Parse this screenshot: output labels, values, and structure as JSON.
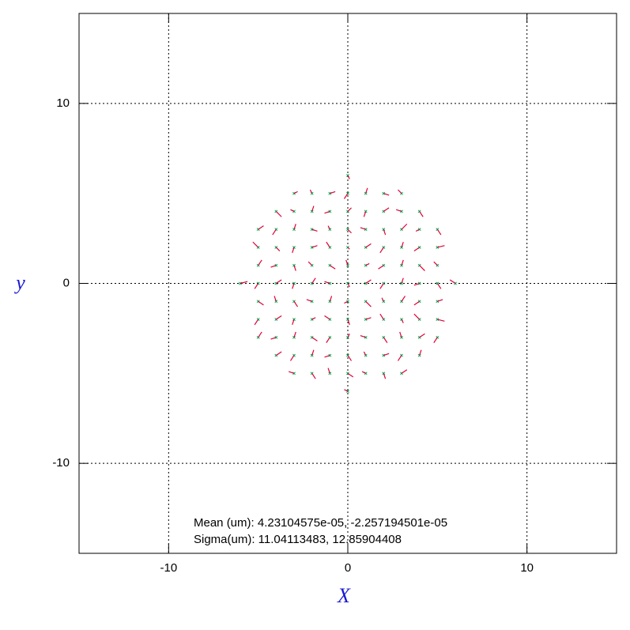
{
  "chart_data": {
    "type": "quiver",
    "xlabel": "X",
    "ylabel": "y",
    "xlim": [
      -15,
      15
    ],
    "ylim": [
      -15,
      15
    ],
    "xticks": [
      -10,
      0,
      10
    ],
    "yticks": [
      -10,
      0,
      10
    ],
    "grid": true,
    "point_color": "#00b050",
    "vector_color": "#e0003c",
    "annotations": [
      "Mean (um): 4.23104575e-05, -2.257194501e-05",
      "Sigma(um): 11.04113483, 12.85904408"
    ],
    "vectors": [
      [
        0,
        6,
        0.1,
        -0.2
      ],
      [
        -3,
        5,
        0.2,
        0.1
      ],
      [
        -2,
        5,
        -0.1,
        0.2
      ],
      [
        -1,
        5,
        0.3,
        0.1
      ],
      [
        0,
        5,
        -0.2,
        -0.3
      ],
      [
        1,
        5,
        0.1,
        0.3
      ],
      [
        2,
        5,
        0.3,
        -0.1
      ],
      [
        3,
        5,
        -0.2,
        0.2
      ],
      [
        -4,
        4,
        0.3,
        -0.3
      ],
      [
        -3,
        4,
        -0.2,
        0.1
      ],
      [
        -2,
        4,
        0.1,
        0.3
      ],
      [
        -1,
        4,
        -0.3,
        -0.1
      ],
      [
        0,
        4,
        0.2,
        0.2
      ],
      [
        1,
        4,
        -0.1,
        -0.3
      ],
      [
        2,
        4,
        0.3,
        0.2
      ],
      [
        3,
        4,
        -0.3,
        0.1
      ],
      [
        4,
        4,
        0.2,
        -0.3
      ],
      [
        -5,
        3,
        0.3,
        0.2
      ],
      [
        -4,
        3,
        -0.2,
        -0.3
      ],
      [
        -3,
        3,
        0.1,
        0.3
      ],
      [
        -2,
        3,
        0.3,
        -0.1
      ],
      [
        -1,
        3,
        -0.1,
        0.2
      ],
      [
        0,
        3,
        0.2,
        -0.2
      ],
      [
        1,
        3,
        -0.3,
        0.1
      ],
      [
        2,
        3,
        0.1,
        -0.3
      ],
      [
        3,
        3,
        0.3,
        0.3
      ],
      [
        4,
        3,
        -0.2,
        -0.1
      ],
      [
        5,
        3,
        0.2,
        -0.3
      ],
      [
        -5,
        2,
        -0.3,
        0.3
      ],
      [
        -4,
        2,
        0.2,
        -0.2
      ],
      [
        -3,
        2,
        -0.1,
        -0.3
      ],
      [
        -2,
        2,
        0.3,
        0.1
      ],
      [
        -1,
        2,
        -0.2,
        0.3
      ],
      [
        0,
        2,
        0.1,
        -0.1
      ],
      [
        1,
        2,
        0.3,
        0.2
      ],
      [
        2,
        2,
        -0.2,
        -0.3
      ],
      [
        3,
        2,
        0.1,
        0.3
      ],
      [
        4,
        2,
        -0.3,
        -0.2
      ],
      [
        5,
        2,
        0.4,
        0.1
      ],
      [
        -5,
        1,
        0.2,
        0.3
      ],
      [
        -4,
        1,
        -0.3,
        -0.1
      ],
      [
        -3,
        1,
        0.1,
        -0.3
      ],
      [
        -2,
        1,
        -0.2,
        0.2
      ],
      [
        -1,
        1,
        0.3,
        -0.2
      ],
      [
        0,
        1,
        -0.1,
        0.3
      ],
      [
        1,
        1,
        0.2,
        0.1
      ],
      [
        2,
        1,
        -0.3,
        -0.2
      ],
      [
        3,
        1,
        0.1,
        0.3
      ],
      [
        4,
        1,
        0.3,
        -0.3
      ],
      [
        5,
        1,
        -0.2,
        0.2
      ],
      [
        -6,
        0,
        0.4,
        0.1
      ],
      [
        -5,
        0,
        -0.2,
        -0.3
      ],
      [
        -4,
        0,
        0.3,
        0.2
      ],
      [
        -3,
        0,
        -0.1,
        -0.3
      ],
      [
        -2,
        0,
        0.2,
        0.3
      ],
      [
        -1,
        0,
        -0.3,
        0.1
      ],
      [
        0,
        0,
        0.1,
        -0.2
      ],
      [
        1,
        0,
        0.3,
        0.2
      ],
      [
        2,
        0,
        -0.2,
        -0.3
      ],
      [
        3,
        0,
        0.1,
        0.3
      ],
      [
        4,
        0,
        -0.3,
        -0.1
      ],
      [
        5,
        0,
        0.2,
        -0.3
      ],
      [
        6,
        0,
        -0.3,
        0.2
      ],
      [
        -5,
        -1,
        0.3,
        -0.2
      ],
      [
        -4,
        -1,
        -0.1,
        0.3
      ],
      [
        -3,
        -1,
        0.2,
        -0.3
      ],
      [
        -2,
        -1,
        -0.3,
        0.1
      ],
      [
        -1,
        -1,
        0.1,
        0.3
      ],
      [
        0,
        -1,
        -0.2,
        -0.1
      ],
      [
        1,
        -1,
        0.3,
        -0.3
      ],
      [
        2,
        -1,
        -0.1,
        0.2
      ],
      [
        3,
        -1,
        0.2,
        0.3
      ],
      [
        4,
        -1,
        -0.3,
        -0.2
      ],
      [
        5,
        -1,
        0.3,
        0.1
      ],
      [
        -5,
        -2,
        -0.2,
        -0.3
      ],
      [
        -4,
        -2,
        0.3,
        0.2
      ],
      [
        -3,
        -2,
        -0.1,
        -0.3
      ],
      [
        -2,
        -2,
        0.2,
        0.1
      ],
      [
        -1,
        -2,
        -0.3,
        0.2
      ],
      [
        0,
        -2,
        0.1,
        -0.3
      ],
      [
        1,
        -2,
        0.3,
        0.1
      ],
      [
        2,
        -2,
        -0.2,
        0.3
      ],
      [
        3,
        -2,
        0.1,
        -0.2
      ],
      [
        4,
        -2,
        -0.3,
        0.3
      ],
      [
        5,
        -2,
        0.4,
        -0.1
      ],
      [
        -5,
        -3,
        0.2,
        0.3
      ],
      [
        -4,
        -3,
        -0.3,
        -0.1
      ],
      [
        -3,
        -3,
        0.1,
        0.3
      ],
      [
        -2,
        -3,
        0.3,
        -0.2
      ],
      [
        -1,
        -3,
        -0.2,
        -0.3
      ],
      [
        0,
        -3,
        0.1,
        0.2
      ],
      [
        1,
        -3,
        -0.3,
        0.1
      ],
      [
        2,
        -3,
        0.2,
        -0.3
      ],
      [
        3,
        -3,
        -0.1,
        0.3
      ],
      [
        4,
        -3,
        0.3,
        0.2
      ],
      [
        5,
        -3,
        -0.2,
        -0.3
      ],
      [
        -4,
        -4,
        0.3,
        0.2
      ],
      [
        -3,
        -4,
        -0.2,
        -0.3
      ],
      [
        -2,
        -4,
        0.1,
        0.3
      ],
      [
        -1,
        -4,
        -0.3,
        -0.1
      ],
      [
        0,
        -4,
        0.2,
        -0.3
      ],
      [
        1,
        -4,
        -0.1,
        0.2
      ],
      [
        2,
        -4,
        0.3,
        0.1
      ],
      [
        3,
        -4,
        -0.2,
        -0.3
      ],
      [
        4,
        -4,
        0.1,
        0.3
      ],
      [
        -3,
        -5,
        -0.3,
        0.1
      ],
      [
        -2,
        -5,
        0.2,
        -0.3
      ],
      [
        -1,
        -5,
        -0.1,
        0.3
      ],
      [
        0,
        -5,
        0.3,
        -0.2
      ],
      [
        1,
        -5,
        -0.2,
        0.1
      ],
      [
        2,
        -5,
        0.1,
        -0.3
      ],
      [
        3,
        -5,
        0.3,
        0.2
      ],
      [
        0,
        -6,
        -0.2,
        0.1
      ]
    ]
  }
}
